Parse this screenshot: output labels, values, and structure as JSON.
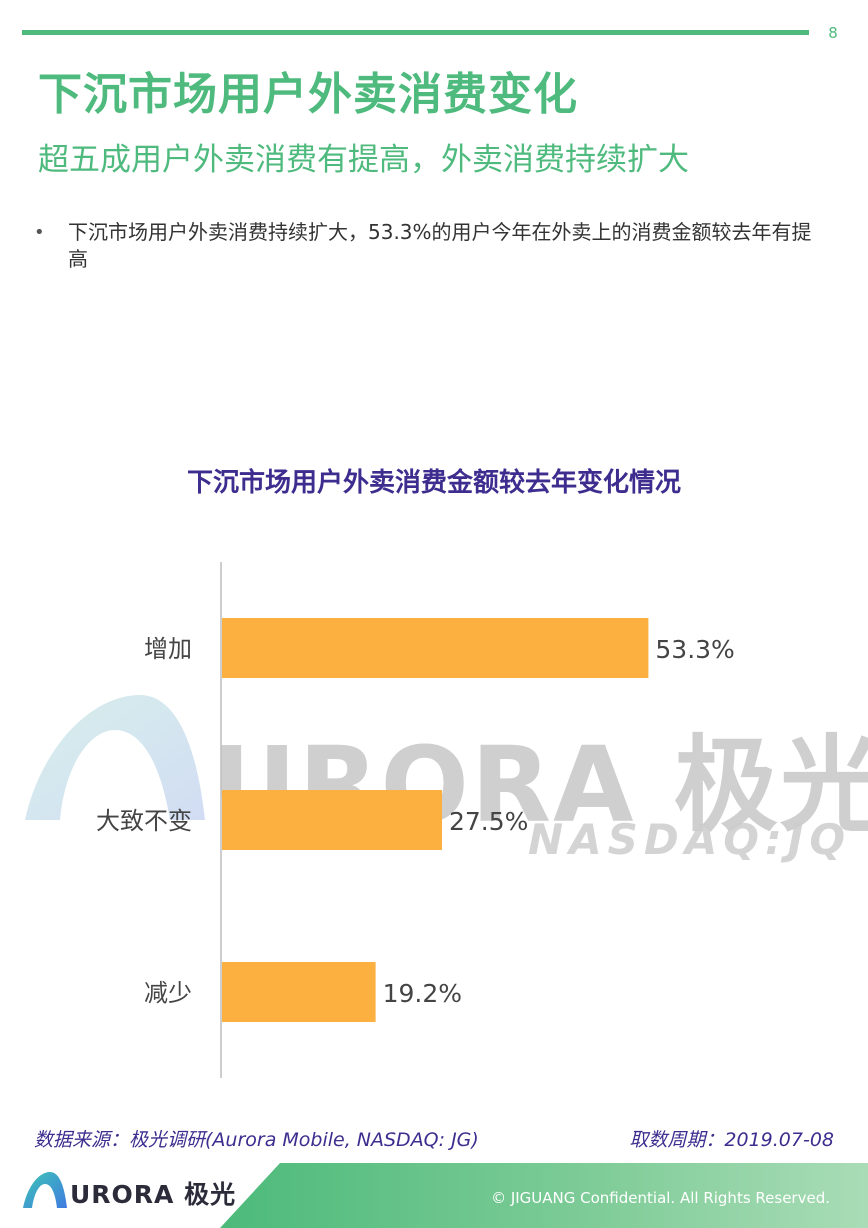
{
  "page": {
    "number": "8"
  },
  "header": {
    "title": "下沉市场用户外卖消费变化",
    "subtitle": "超五成用户外卖消费有提高，外卖消费持续扩大"
  },
  "bullets": [
    {
      "marker": "•",
      "text": "下沉市场用户外卖消费持续扩大，53.3%的用户今年在外卖上的消费金额较去年有提高"
    }
  ],
  "watermark": {
    "brand": "URORA 极光",
    "ticker": "NASDAQ:JQ"
  },
  "chart_data": {
    "type": "bar",
    "orientation": "horizontal",
    "title": "下沉市场用户外卖消费金额较去年变化情况",
    "categories": [
      "增加",
      "大致不变",
      "减少"
    ],
    "values": [
      53.3,
      27.5,
      19.2
    ],
    "data_labels": [
      "53.3%",
      "27.5%",
      "19.2%"
    ],
    "unit": "%",
    "xlim": [
      0,
      70
    ],
    "bar_color": "#fbb040",
    "grid": false,
    "legend": "none"
  },
  "footer": {
    "source": "数据来源：极光调研(Aurora Mobile, NASDAQ: JG)",
    "period": "取数周期：2019.07-08",
    "brand": "URORA 极光",
    "copyright": "© JIGUANG Confidential. All Rights Reserved."
  },
  "colors": {
    "accent": "#4fba7d",
    "chart_title": "#3e2d8f",
    "bar": "#fbb040"
  }
}
